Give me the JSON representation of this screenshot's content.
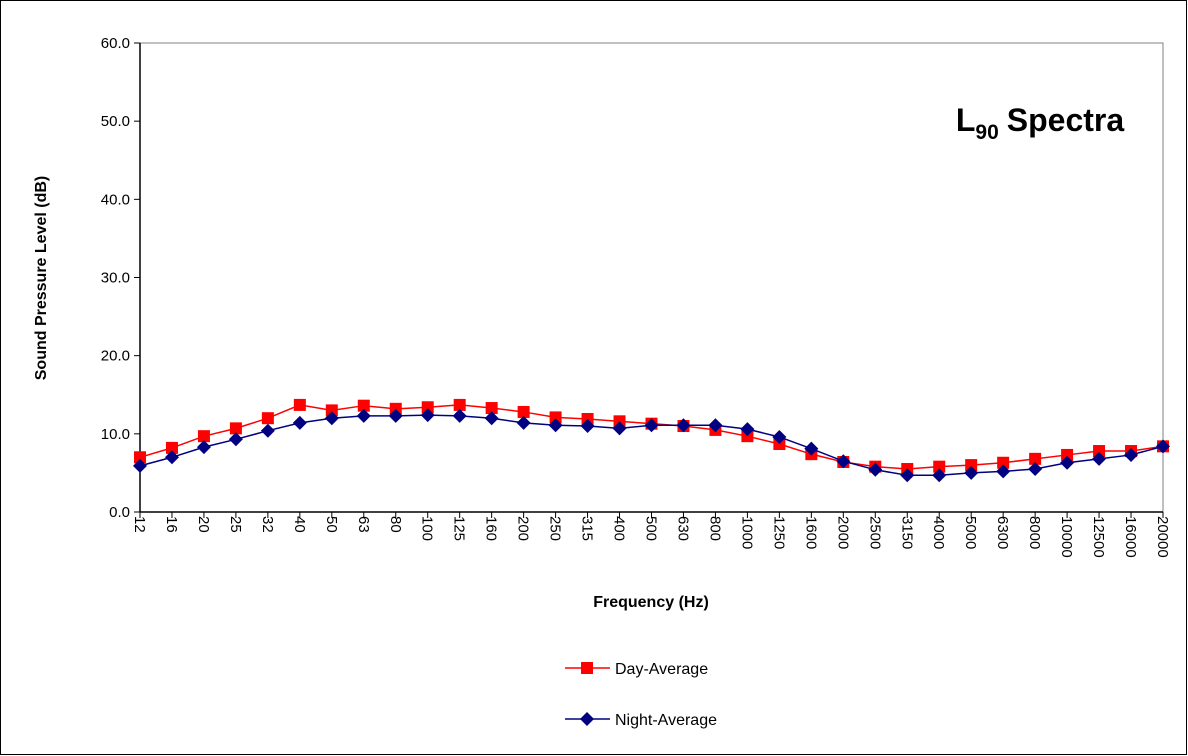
{
  "chart_data": {
    "type": "line",
    "title": {
      "base": "L",
      "subscript": "90",
      "text": "Spectra"
    },
    "x_label": "Frequency (Hz)",
    "y_label": "Sound Pressure Level (dB)",
    "categories": [
      "12",
      "16",
      "20",
      "25",
      "32",
      "40",
      "50",
      "63",
      "80",
      "100",
      "125",
      "160",
      "200",
      "250",
      "315",
      "400",
      "500",
      "630",
      "800",
      "1000",
      "1250",
      "1600",
      "2000",
      "2500",
      "3150",
      "4000",
      "5000",
      "6300",
      "8000",
      "10000",
      "12500",
      "16000",
      "20000"
    ],
    "series": [
      {
        "name": "Day-Average",
        "color": "#ff0000",
        "marker": "square",
        "values": [
          7.0,
          8.2,
          9.7,
          10.7,
          12.0,
          13.7,
          13.0,
          13.6,
          13.2,
          13.4,
          13.7,
          13.3,
          12.8,
          12.1,
          11.9,
          11.6,
          11.3,
          11.0,
          10.5,
          9.7,
          8.7,
          7.4,
          6.4,
          5.8,
          5.5,
          5.8,
          6.0,
          6.3,
          6.8,
          7.3,
          7.8,
          7.8,
          8.4
        ]
      },
      {
        "name": "Night-Average",
        "color": "#000080",
        "marker": "diamond",
        "values": [
          5.9,
          7.0,
          8.3,
          9.3,
          10.4,
          11.4,
          12.0,
          12.3,
          12.3,
          12.4,
          12.3,
          12.0,
          11.4,
          11.1,
          11.0,
          10.7,
          11.1,
          11.1,
          11.1,
          10.6,
          9.6,
          8.1,
          6.5,
          5.4,
          4.7,
          4.7,
          5.0,
          5.2,
          5.5,
          6.3,
          6.8,
          7.3,
          8.4
        ]
      }
    ],
    "ylim": [
      0,
      60
    ],
    "yticks": [
      {
        "value": 0,
        "label": "0.0"
      },
      {
        "value": 10,
        "label": "10.0"
      },
      {
        "value": 20,
        "label": "20.0"
      },
      {
        "value": 30,
        "label": "30.0"
      },
      {
        "value": 40,
        "label": "40.0"
      },
      {
        "value": 50,
        "label": "50.0"
      },
      {
        "value": 60,
        "label": "60.0"
      }
    ],
    "grid": false,
    "legend": "bottom"
  }
}
